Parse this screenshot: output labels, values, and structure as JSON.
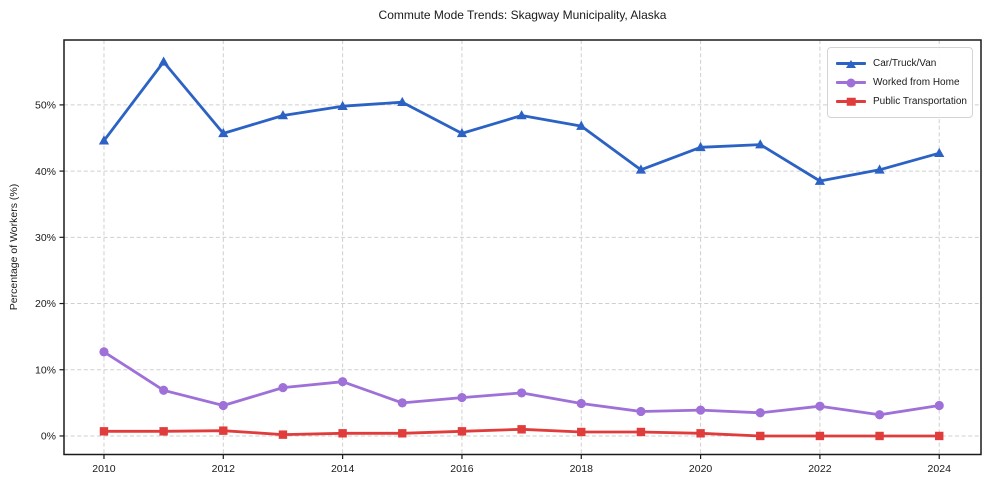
{
  "page": {
    "title": "Commute Mode Trends: Skagway Municipality, Alaska"
  },
  "chart_data": {
    "type": "line",
    "title": "Commute Mode Trends: Skagway Municipality, Alaska",
    "xlabel": "",
    "ylabel": "Percentage of Workers (%)",
    "x": [
      2010,
      2011,
      2012,
      2013,
      2014,
      2015,
      2016,
      2017,
      2018,
      2019,
      2020,
      2021,
      2022,
      2023,
      2024
    ],
    "series": [
      {
        "name": "Car/Truck/Van",
        "color": "#2b62c4",
        "marker": "triangle",
        "values": [
          44.6,
          56.5,
          45.7,
          48.4,
          49.8,
          50.4,
          45.7,
          48.4,
          46.8,
          40.2,
          43.6,
          44.0,
          38.5,
          40.2,
          42.7
        ]
      },
      {
        "name": "Worked from Home",
        "color": "#9e70d8",
        "marker": "circle",
        "values": [
          12.7,
          6.9,
          4.6,
          7.3,
          8.2,
          5.0,
          5.8,
          6.5,
          4.9,
          3.7,
          3.9,
          3.5,
          4.5,
          3.2,
          4.6
        ]
      },
      {
        "name": "Public Transportation",
        "color": "#e03c3c",
        "marker": "square",
        "values": [
          0.7,
          0.7,
          0.8,
          0.2,
          0.4,
          0.4,
          0.7,
          1.0,
          0.6,
          0.6,
          0.4,
          0.0,
          0.0,
          0.0,
          0.0
        ]
      }
    ],
    "xticks": [
      2010,
      2012,
      2014,
      2016,
      2018,
      2020,
      2022,
      2024
    ],
    "ytick_values": [
      0,
      10,
      20,
      30,
      40,
      50
    ],
    "ytick_labels": [
      "0%",
      "10%",
      "20%",
      "30%",
      "40%",
      "50%"
    ],
    "xlim": [
      2009.33,
      2024.7
    ],
    "ylim": [
      -2.8,
      59.8
    ],
    "grid": true,
    "grid_style": "dashed",
    "legend_position": "upper right",
    "colors": {
      "grid": "#cfcfcf",
      "spine": "#1a1a1a",
      "background": "#ffffff"
    }
  }
}
